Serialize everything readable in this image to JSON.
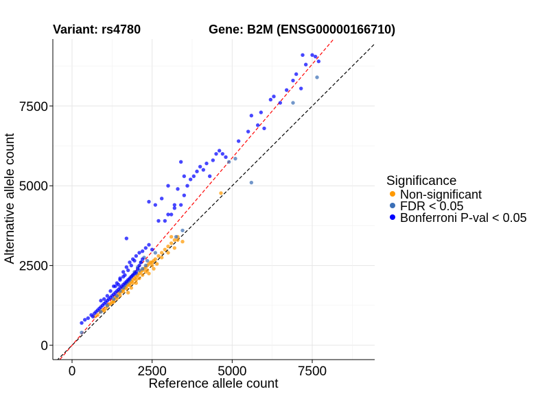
{
  "chart_data": {
    "type": "scatter",
    "title_left": "Variant: rs4780",
    "title_right": "Gene: B2M (ENSG00000166710)",
    "xlabel": "Reference allele count",
    "ylabel": "Alternative allele count",
    "xlim": [
      -600,
      9450
    ],
    "ylim": [
      -450,
      9600
    ],
    "xticks": [
      0,
      2500,
      5000,
      7500
    ],
    "yticks": [
      0,
      2500,
      5000,
      7500
    ],
    "grid": true,
    "reference_lines": [
      {
        "name": "identity",
        "slope": 1.0,
        "intercept": 0,
        "color": "#000000",
        "style": "dashed"
      },
      {
        "name": "fitted",
        "slope": 1.175,
        "intercept": 0,
        "color": "#ff0000",
        "style": "dashed"
      }
    ],
    "legend": {
      "title": "Significance",
      "position": "right",
      "entries": [
        {
          "label": "Non-significant",
          "color": "#ff9900"
        },
        {
          "label": "FDR < 0.05",
          "color": "#3b6fb6"
        },
        {
          "label": "Bonferroni P-val < 0.05",
          "color": "#0000ff"
        }
      ]
    },
    "series": [
      {
        "name": "Non-significant",
        "color": "#ff9900",
        "points": [
          [
            700,
            900
          ],
          [
            800,
            950
          ],
          [
            880,
            1050
          ],
          [
            950,
            1100
          ],
          [
            1000,
            1080
          ],
          [
            1050,
            1150
          ],
          [
            1100,
            1220
          ],
          [
            1150,
            1280
          ],
          [
            1200,
            1300
          ],
          [
            1250,
            1350
          ],
          [
            1300,
            1400
          ],
          [
            1350,
            1500
          ],
          [
            1400,
            1520
          ],
          [
            1450,
            1600
          ],
          [
            1500,
            1650
          ],
          [
            1550,
            1700
          ],
          [
            1600,
            1750
          ],
          [
            1650,
            1800
          ],
          [
            1700,
            1850
          ],
          [
            1750,
            1900
          ],
          [
            1800,
            1950
          ],
          [
            1850,
            2000
          ],
          [
            1900,
            2050
          ],
          [
            1950,
            2100
          ],
          [
            2000,
            2150
          ],
          [
            2050,
            2200
          ],
          [
            2100,
            2250
          ],
          [
            2150,
            2300
          ],
          [
            2200,
            2350
          ],
          [
            2250,
            2400
          ],
          [
            2300,
            2450
          ],
          [
            2350,
            2500
          ],
          [
            2400,
            2550
          ],
          [
            2450,
            2600
          ],
          [
            2500,
            2600
          ],
          [
            2550,
            2650
          ],
          [
            2300,
            2300
          ],
          [
            2200,
            2200
          ],
          [
            2100,
            2100
          ],
          [
            2000,
            2050
          ],
          [
            1900,
            1950
          ],
          [
            1800,
            1880
          ],
          [
            1700,
            1780
          ],
          [
            1600,
            1680
          ],
          [
            1500,
            1560
          ],
          [
            1400,
            1460
          ],
          [
            1300,
            1360
          ],
          [
            2500,
            2500
          ],
          [
            2600,
            2700
          ],
          [
            2700,
            2800
          ],
          [
            2800,
            2900
          ],
          [
            2900,
            3000
          ],
          [
            3000,
            3100
          ],
          [
            3100,
            3200
          ],
          [
            3200,
            3300
          ],
          [
            3300,
            3400
          ],
          [
            3450,
            3250
          ],
          [
            3200,
            3050
          ],
          [
            3000,
            2900
          ],
          [
            2800,
            2750
          ],
          [
            2650,
            2550
          ],
          [
            3100,
            3400
          ],
          [
            3300,
            3300
          ],
          [
            2400,
            2250
          ],
          [
            2550,
            2400
          ],
          [
            2350,
            2350
          ],
          [
            4650,
            4770
          ],
          [
            1850,
            1800
          ],
          [
            2000,
            1950
          ],
          [
            1750,
            1650
          ]
        ]
      },
      {
        "name": "FDR < 0.05",
        "color": "#3b6fb6",
        "points": [
          [
            300,
            400
          ],
          [
            900,
            1050
          ],
          [
            1100,
            1250
          ],
          [
            1300,
            1450
          ],
          [
            1500,
            1700
          ],
          [
            1600,
            1800
          ],
          [
            1700,
            1950
          ],
          [
            1800,
            2050
          ],
          [
            1900,
            2200
          ],
          [
            2000,
            2250
          ],
          [
            2100,
            2350
          ],
          [
            2200,
            2400
          ],
          [
            2300,
            2500
          ],
          [
            1750,
            2000
          ],
          [
            1650,
            1880
          ],
          [
            1850,
            2150
          ],
          [
            2150,
            2600
          ],
          [
            2350,
            2650
          ],
          [
            2600,
            2900
          ],
          [
            3250,
            3400
          ],
          [
            3450,
            3600
          ],
          [
            4900,
            5750
          ],
          [
            5100,
            5850
          ],
          [
            5600,
            5100
          ],
          [
            6900,
            7600
          ],
          [
            7650,
            8400
          ],
          [
            1950,
            2300
          ],
          [
            2050,
            2450
          ],
          [
            1400,
            1550
          ],
          [
            2250,
            2750
          ]
        ]
      },
      {
        "name": "Bonferroni P-val < 0.05",
        "color": "#0000ff",
        "points": [
          [
            300,
            700
          ],
          [
            400,
            800
          ],
          [
            500,
            850
          ],
          [
            600,
            950
          ],
          [
            650,
            900
          ],
          [
            700,
            1000
          ],
          [
            750,
            1050
          ],
          [
            800,
            1100
          ],
          [
            850,
            1150
          ],
          [
            900,
            1200
          ],
          [
            950,
            1250
          ],
          [
            1000,
            1300
          ],
          [
            1050,
            1350
          ],
          [
            1100,
            1400
          ],
          [
            1150,
            1450
          ],
          [
            1200,
            1500
          ],
          [
            1250,
            1550
          ],
          [
            1300,
            1600
          ],
          [
            1350,
            1650
          ],
          [
            1400,
            1700
          ],
          [
            1450,
            1750
          ],
          [
            1500,
            1800
          ],
          [
            1550,
            1850
          ],
          [
            1600,
            1900
          ],
          [
            1650,
            1950
          ],
          [
            1700,
            2000
          ],
          [
            1750,
            2050
          ],
          [
            1800,
            2100
          ],
          [
            1850,
            2150
          ],
          [
            1900,
            2200
          ],
          [
            1950,
            2250
          ],
          [
            2000,
            2300
          ],
          [
            2050,
            2400
          ],
          [
            2100,
            2500
          ],
          [
            2150,
            2600
          ],
          [
            2200,
            2700
          ],
          [
            1200,
            1700
          ],
          [
            1300,
            1850
          ],
          [
            1400,
            1950
          ],
          [
            1500,
            2100
          ],
          [
            1600,
            2300
          ],
          [
            1700,
            2450
          ],
          [
            1800,
            2600
          ],
          [
            1900,
            2700
          ],
          [
            2000,
            2800
          ],
          [
            1000,
            1450
          ],
          [
            1100,
            1550
          ],
          [
            900,
            1400
          ],
          [
            1650,
            2200
          ],
          [
            1750,
            2350
          ],
          [
            1850,
            2500
          ],
          [
            1950,
            2650
          ],
          [
            2100,
            2900
          ],
          [
            2200,
            2950
          ],
          [
            1700,
            3350
          ],
          [
            2500,
            3000
          ],
          [
            2700,
            3900
          ],
          [
            2900,
            3900
          ],
          [
            3000,
            4100
          ],
          [
            3200,
            4300
          ],
          [
            3400,
            4400
          ],
          [
            3500,
            4700
          ],
          [
            3600,
            5000
          ],
          [
            3700,
            5200
          ],
          [
            3800,
            5300
          ],
          [
            3900,
            5450
          ],
          [
            4000,
            5600
          ],
          [
            4100,
            5500
          ],
          [
            4200,
            5700
          ],
          [
            3300,
            4900
          ],
          [
            3500,
            5300
          ],
          [
            3400,
            5750
          ],
          [
            4400,
            5800
          ],
          [
            4500,
            6000
          ],
          [
            4600,
            6100
          ],
          [
            4700,
            6000
          ],
          [
            4800,
            5900
          ],
          [
            4300,
            5300
          ],
          [
            2800,
            4600
          ],
          [
            2600,
            4400
          ],
          [
            2400,
            4500
          ],
          [
            3000,
            5000
          ],
          [
            3100,
            4100
          ],
          [
            3200,
            4400
          ],
          [
            5200,
            6400
          ],
          [
            5500,
            6700
          ],
          [
            5600,
            7200
          ],
          [
            5800,
            6900
          ],
          [
            5900,
            7300
          ],
          [
            6000,
            6800
          ],
          [
            6200,
            7700
          ],
          [
            6300,
            7800
          ],
          [
            6500,
            7600
          ],
          [
            6700,
            8000
          ],
          [
            6900,
            8300
          ],
          [
            7000,
            8500
          ],
          [
            7200,
            9100
          ],
          [
            7300,
            8800
          ],
          [
            7500,
            9100
          ],
          [
            7600,
            9050
          ],
          [
            7700,
            8900
          ],
          [
            7150,
            8050
          ],
          [
            1500,
            2050
          ],
          [
            1600,
            2150
          ],
          [
            1350,
            1850
          ],
          [
            1450,
            1900
          ],
          [
            2300,
            3050
          ],
          [
            2400,
            3150
          ]
        ]
      }
    ]
  }
}
